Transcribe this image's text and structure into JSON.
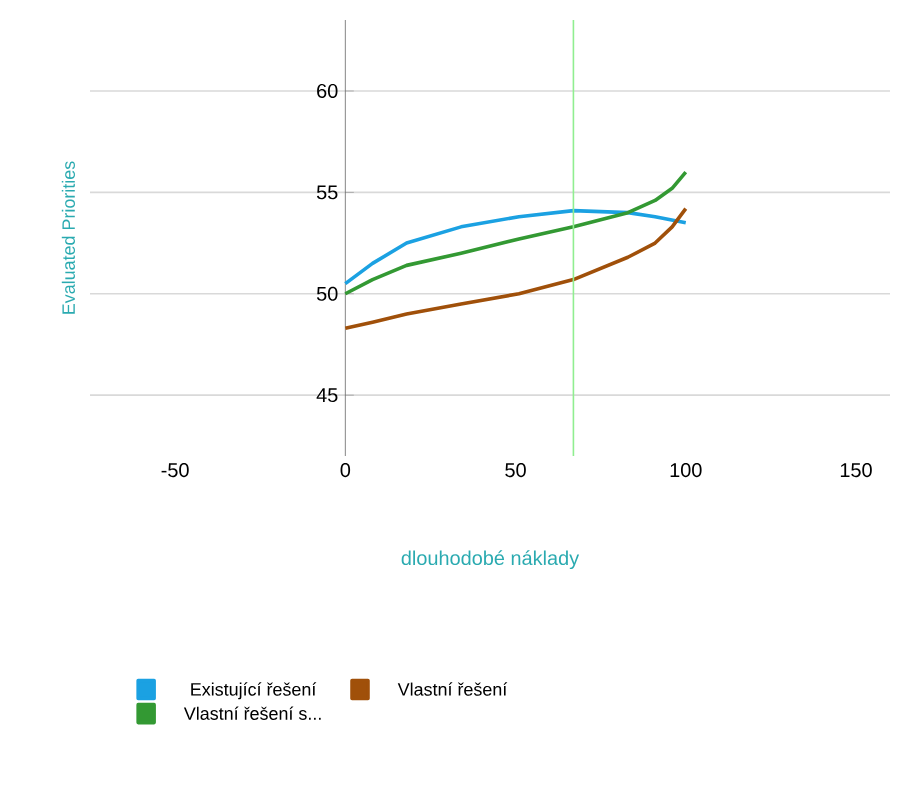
{
  "chart_data": {
    "type": "line",
    "xlabel": "dlouhodobé náklady",
    "ylabel": "Evaluated Priorities",
    "xlim": [
      -75,
      160
    ],
    "ylim": [
      42,
      63.5
    ],
    "xticks": [
      -50,
      0,
      50,
      100,
      150
    ],
    "yticks": [
      45,
      50,
      55,
      60
    ],
    "grid": "y",
    "legend": "bottom",
    "marker": "none",
    "line_style": "solid",
    "ref_lines": [
      {
        "axis": "x",
        "value": 67,
        "color": "#90ee90"
      }
    ],
    "series": [
      {
        "name": "Existující řešení",
        "color": "#1ba1e2",
        "x": [
          0,
          8,
          18,
          34,
          51,
          67,
          83,
          91,
          100
        ],
        "values": [
          50.5,
          51.5,
          52.5,
          53.3,
          53.8,
          54.1,
          54.0,
          53.8,
          53.5
        ]
      },
      {
        "name": "Vlastní řešení",
        "color": "#a0500a",
        "x": [
          0,
          8,
          18,
          34,
          51,
          67,
          83,
          91,
          96,
          100
        ],
        "values": [
          48.3,
          48.6,
          49.0,
          49.5,
          50.0,
          50.7,
          51.8,
          52.5,
          53.3,
          54.2
        ]
      },
      {
        "name": "Vlastní řešení s...",
        "color": "#339933",
        "x": [
          0,
          8,
          18,
          34,
          51,
          67,
          83,
          91,
          96,
          100
        ],
        "values": [
          50.0,
          50.7,
          51.4,
          52.0,
          52.7,
          53.3,
          54.0,
          54.6,
          55.2,
          56.0
        ]
      }
    ]
  }
}
